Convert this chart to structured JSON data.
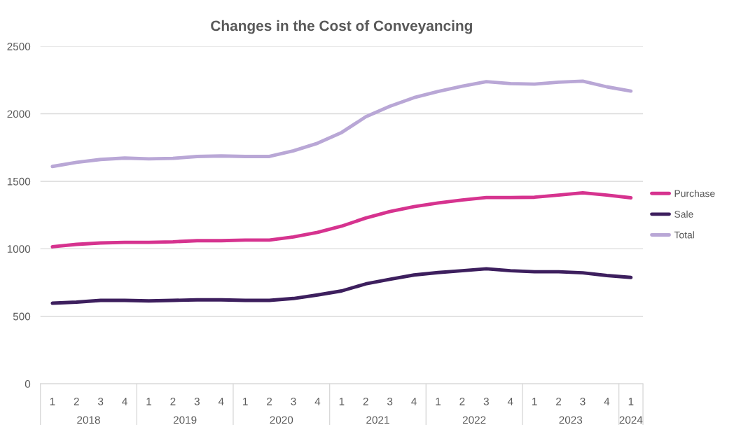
{
  "chart_data": {
    "type": "line",
    "title": "Changes in the Cost of Conveyancing",
    "categories": [
      "1",
      "2",
      "3",
      "4",
      "1",
      "2",
      "3",
      "4",
      "1",
      "2",
      "3",
      "4",
      "1",
      "2",
      "3",
      "4",
      "1",
      "2",
      "3",
      "4",
      "1",
      "2",
      "3",
      "4",
      "1"
    ],
    "annotations": [
      "2018",
      "2019",
      "2020",
      "2021",
      "2022",
      "2023",
      "2024"
    ],
    "series": [
      {
        "name": "Purchase",
        "color": "#d6338f",
        "values": [
          1015,
          1033,
          1043,
          1048,
          1048,
          1052,
          1060,
          1060,
          1065,
          1065,
          1088,
          1122,
          1168,
          1228,
          1276,
          1312,
          1340,
          1362,
          1380,
          1380,
          1382,
          1398,
          1415,
          1398,
          1378
        ]
      },
      {
        "name": "Sale",
        "color": "#3d1f5e",
        "values": [
          597,
          605,
          618,
          618,
          614,
          618,
          622,
          622,
          618,
          618,
          632,
          658,
          688,
          740,
          774,
          806,
          824,
          838,
          852,
          838,
          830,
          830,
          822,
          802,
          788
        ]
      },
      {
        "name": "Total",
        "color": "#b9a7d6",
        "values": [
          1610,
          1640,
          1662,
          1672,
          1666,
          1670,
          1684,
          1688,
          1684,
          1684,
          1726,
          1782,
          1862,
          1978,
          2056,
          2120,
          2166,
          2204,
          2238,
          2224,
          2220,
          2234,
          2242,
          2200,
          2168
        ]
      }
    ],
    "ylim": [
      0,
      2500
    ],
    "yticks": [
      0,
      500,
      1000,
      1500,
      2000,
      2500
    ],
    "grid": "y",
    "legend": "right",
    "marker": "none",
    "line_style": "solid"
  }
}
